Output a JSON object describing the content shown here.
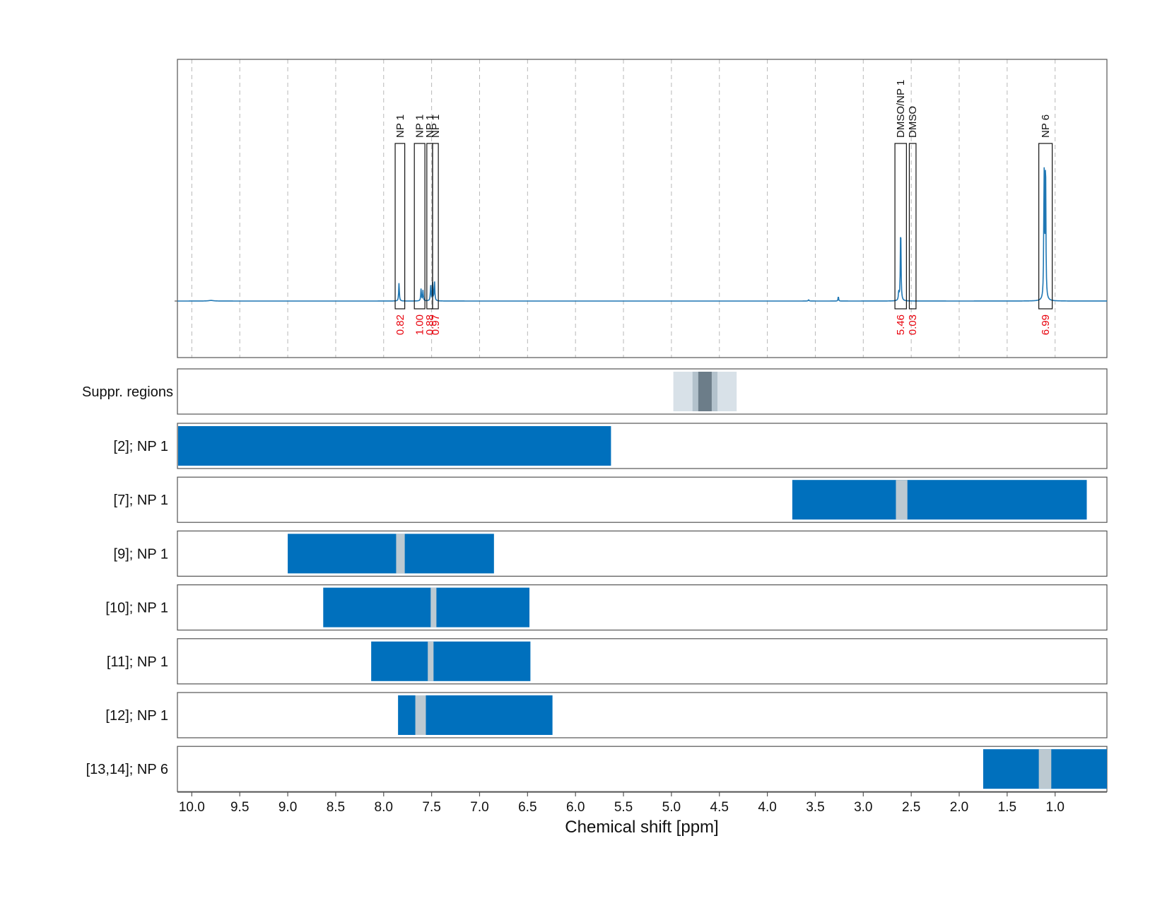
{
  "chart_data": {
    "type": "nmr-spectrum-with-region-bars",
    "xlabel": "Chemical shift [ppm]",
    "xlim": [
      10.15,
      0.46
    ],
    "x_reversed": true,
    "xticks": [
      10.0,
      9.5,
      9.0,
      8.5,
      8.0,
      7.5,
      7.0,
      6.5,
      6.0,
      5.5,
      5.0,
      4.5,
      4.0,
      3.5,
      3.0,
      2.5,
      2.0,
      1.5,
      1.0
    ],
    "tick_labels": [
      "10.0",
      "9.5",
      "9.0",
      "8.5",
      "8.0",
      "7.5",
      "7.0",
      "6.5",
      "6.0",
      "5.5",
      "5.0",
      "4.5",
      "4.0",
      "3.5",
      "3.0",
      "2.5",
      "2.0",
      "1.5",
      "1.0"
    ],
    "grid": "vertical dashed",
    "colors": {
      "spectrum": "#1f77b4",
      "bar": "#0070bd",
      "excluded": "#bcc9d1",
      "suppr_light": "#d8e1e8",
      "suppr_mid": "#b3c2cc",
      "suppr_dark": "#6c7d89",
      "integral_text": "#e8000b"
    },
    "spectrum": {
      "peaks": [
        {
          "ppm": 9.8,
          "height": 0.004,
          "width": 0.03
        },
        {
          "ppm": 7.84,
          "height": 0.12,
          "width": 0.004
        },
        {
          "ppm": 7.61,
          "height": 0.08,
          "width": 0.004
        },
        {
          "ppm": 7.59,
          "height": 0.07,
          "width": 0.004
        },
        {
          "ppm": 7.51,
          "height": 0.1,
          "width": 0.004
        },
        {
          "ppm": 7.49,
          "height": 0.12,
          "width": 0.004
        },
        {
          "ppm": 7.47,
          "height": 0.13,
          "width": 0.004
        },
        {
          "ppm": 3.57,
          "height": 0.008,
          "width": 0.005
        },
        {
          "ppm": 3.26,
          "height": 0.035,
          "width": 0.003
        },
        {
          "ppm": 2.61,
          "height": 0.52,
          "width": 0.004
        },
        {
          "ppm": 2.63,
          "height": 0.06,
          "width": 0.004
        },
        {
          "ppm": 1.1,
          "height": 0.98,
          "width": 0.004
        },
        {
          "ppm": 1.115,
          "height": 0.85,
          "width": 0.004
        }
      ],
      "peak_regions": [
        {
          "label": "NP 1",
          "from": 7.88,
          "to": 7.78,
          "integral": "0.82"
        },
        {
          "label": "NP 1",
          "from": 7.68,
          "to": 7.57,
          "integral": "1.00"
        },
        {
          "label": "NP 1",
          "from": 7.55,
          "to": 7.49,
          "integral": "0.88"
        },
        {
          "label": "NP 1",
          "from": 7.49,
          "to": 7.43,
          "integral": "0.97"
        },
        {
          "label": "DMSO/NP 1",
          "from": 2.67,
          "to": 2.55,
          "integral": "5.46"
        },
        {
          "label": "DMSO",
          "from": 2.52,
          "to": 2.45,
          "integral": "0.03"
        },
        {
          "label": "NP 6",
          "from": 1.17,
          "to": 1.03,
          "integral": "6.99"
        }
      ]
    },
    "suppression": {
      "label": "Suppr. regions",
      "segments": [
        {
          "from": 4.98,
          "to": 4.32,
          "shade": "light"
        },
        {
          "from": 4.78,
          "to": 4.52,
          "shade": "mid"
        },
        {
          "from": 4.72,
          "to": 4.58,
          "shade": "dark"
        }
      ]
    },
    "rows": [
      {
        "label": "[2]; NP 1",
        "from": 10.15,
        "to": 5.63,
        "gaps": []
      },
      {
        "label": "[7]; NP 1",
        "from": 3.74,
        "to": 0.67,
        "gaps": [
          [
            2.66,
            2.54
          ]
        ]
      },
      {
        "label": "[9]; NP 1",
        "from": 9.0,
        "to": 6.85,
        "gaps": [
          [
            7.87,
            7.78
          ]
        ]
      },
      {
        "label": "[10]; NP 1",
        "from": 8.63,
        "to": 6.48,
        "gaps": [
          [
            7.51,
            7.45
          ]
        ]
      },
      {
        "label": "[11]; NP 1",
        "from": 8.13,
        "to": 6.47,
        "gaps": [
          [
            7.54,
            7.48
          ]
        ]
      },
      {
        "label": "[12]; NP 1",
        "from": 7.85,
        "to": 6.24,
        "gaps": [
          [
            7.67,
            7.56
          ]
        ]
      },
      {
        "label": "[13,14]; NP 6",
        "from": 1.75,
        "to": 0.46,
        "gaps": [
          [
            1.17,
            1.04
          ]
        ]
      }
    ]
  }
}
